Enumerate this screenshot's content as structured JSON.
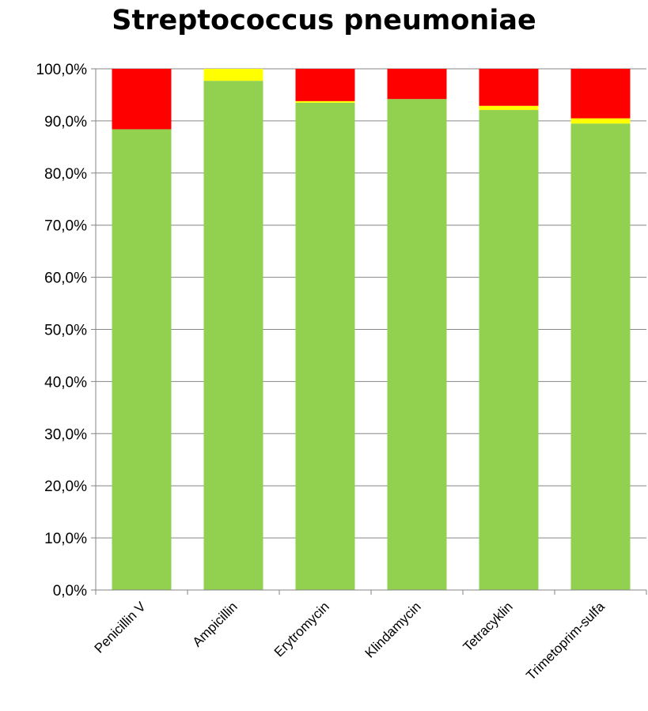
{
  "chart_data": {
    "type": "bar",
    "stacked": true,
    "title": "Streptococcus pneumoniae",
    "xlabel": "",
    "ylabel": "",
    "categories": [
      "Penicillin V",
      "Ampicillin",
      "Erytromycin",
      "Klindamycin",
      "Tetracyklin",
      "Trimetoprim-sulfa"
    ],
    "series": [
      {
        "color": "#92d050",
        "values": [
          88.4,
          97.7,
          93.5,
          94.2,
          92.1,
          89.5
        ]
      },
      {
        "color": "#ffff00",
        "values": [
          0.0,
          2.3,
          0.3,
          0.0,
          0.8,
          1.0
        ]
      },
      {
        "color": "#ff0000",
        "values": [
          11.6,
          0.0,
          6.2,
          5.8,
          7.1,
          9.5
        ]
      }
    ],
    "ylim": [
      0,
      100
    ],
    "yticks": [
      "0,0%",
      "10,0%",
      "20,0%",
      "30,0%",
      "40,0%",
      "50,0%",
      "60,0%",
      "70,0%",
      "80,0%",
      "90,0%",
      "100,0%"
    ],
    "grid": true,
    "legend": "none"
  }
}
